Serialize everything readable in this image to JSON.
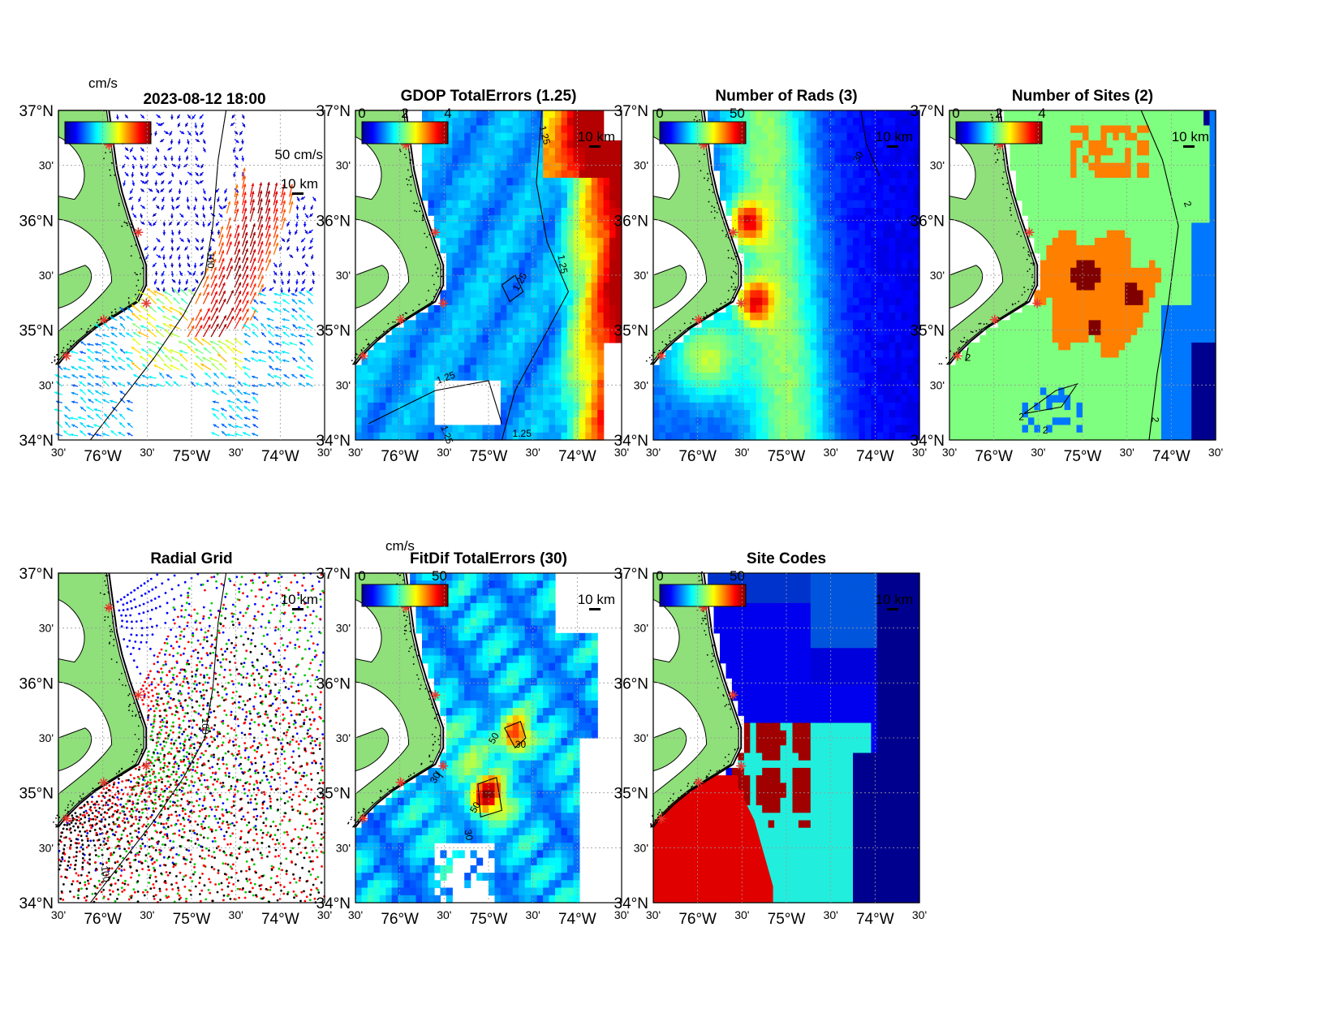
{
  "figure": {
    "timestamp": "2023-08-12 18:00",
    "colors": {
      "land": "#8fdf7a",
      "site_marker": "#e8382d",
      "contour": "#000000"
    }
  },
  "axes_ticks": {
    "y_major": [
      "37°N",
      "36°N",
      "35°N",
      "34°N"
    ],
    "y_minor": [
      "30'",
      "30'",
      "30'"
    ],
    "x_labels": [
      "30'",
      "76°W",
      "30'",
      "75°W",
      "30'",
      "74°W",
      "30'"
    ]
  },
  "panels": [
    {
      "id": "vectors",
      "title": "",
      "colorbar_unit": "cm/s",
      "colorbar_ticks": [],
      "scale_label": "10 km",
      "vector_label": "50 cm/s",
      "contours": [
        "100"
      ]
    },
    {
      "id": "gdop",
      "title": "GDOP TotalErrors (1.25)",
      "colorbar_ticks": [
        "0",
        "2",
        "4"
      ],
      "scale_label": "10 km",
      "contours": [
        "1.25",
        "1.25",
        "1.25",
        "1.25",
        "1.25",
        "1.25"
      ]
    },
    {
      "id": "rads",
      "title": "Number of Rads (3)",
      "colorbar_ticks": [
        "0",
        "50"
      ],
      "scale_label": "10 km",
      "contours": [
        "30"
      ]
    },
    {
      "id": "sites",
      "title": "Number of Sites (2)",
      "colorbar_ticks": [
        "0",
        "2",
        "4"
      ],
      "scale_label": "10 km",
      "contours": [
        "2",
        "2",
        "2",
        "2",
        "2"
      ]
    },
    {
      "id": "radialgrid",
      "title": "Radial Grid",
      "scale_label": "10 km",
      "contours": [
        "100",
        "100"
      ]
    },
    {
      "id": "fitdif",
      "title": "FitDif TotalErrors (30)",
      "colorbar_unit": "cm/s",
      "colorbar_ticks": [
        "0",
        "50"
      ],
      "scale_label": "10 km",
      "contours": [
        "50",
        "30",
        "50",
        "30",
        "30"
      ]
    },
    {
      "id": "sitecodes",
      "title": "Site Codes",
      "colorbar_ticks": [
        "0",
        "50"
      ],
      "scale_label": "10 km"
    }
  ],
  "chart_data": [
    {
      "type": "heatmap",
      "title": "",
      "description_visible": "surface current vectors colored by speed",
      "colorbar_unit": "cm/s",
      "reference_vector": "50 cm/s",
      "xlim": [
        -76.5,
        -73.5
      ],
      "ylim": [
        34,
        37
      ]
    },
    {
      "type": "heatmap",
      "title": "GDOP TotalErrors (1.25)",
      "clim": [
        0,
        4
      ],
      "contour_level": 1.25,
      "xlim": [
        -76.5,
        -73.5
      ],
      "ylim": [
        34,
        37
      ]
    },
    {
      "type": "heatmap",
      "title": "Number of Rads (3)",
      "clim": [
        0,
        50
      ],
      "contour_level": 30,
      "xlim": [
        -76.5,
        -73.5
      ],
      "ylim": [
        34,
        37
      ]
    },
    {
      "type": "heatmap",
      "title": "Number of Sites (2)",
      "clim": [
        0,
        4
      ],
      "contour_level": 2,
      "xlim": [
        -76.5,
        -73.5
      ],
      "ylim": [
        34,
        37
      ]
    },
    {
      "type": "scatter",
      "title": "Radial Grid",
      "series_colors": [
        "#ff0000",
        "#0000ff",
        "#00cc00",
        "#000000"
      ],
      "xlim": [
        -76.5,
        -73.5
      ],
      "ylim": [
        34,
        37
      ]
    },
    {
      "type": "heatmap",
      "title": "FitDif TotalErrors (30)",
      "colorbar_unit": "cm/s",
      "clim": [
        0,
        50
      ],
      "contour_levels": [
        30,
        50
      ],
      "xlim": [
        -76.5,
        -73.5
      ],
      "ylim": [
        34,
        37
      ]
    },
    {
      "type": "heatmap",
      "title": "Site Codes",
      "clim": [
        0,
        50
      ],
      "xlim": [
        -76.5,
        -73.5
      ],
      "ylim": [
        34,
        37
      ]
    }
  ]
}
